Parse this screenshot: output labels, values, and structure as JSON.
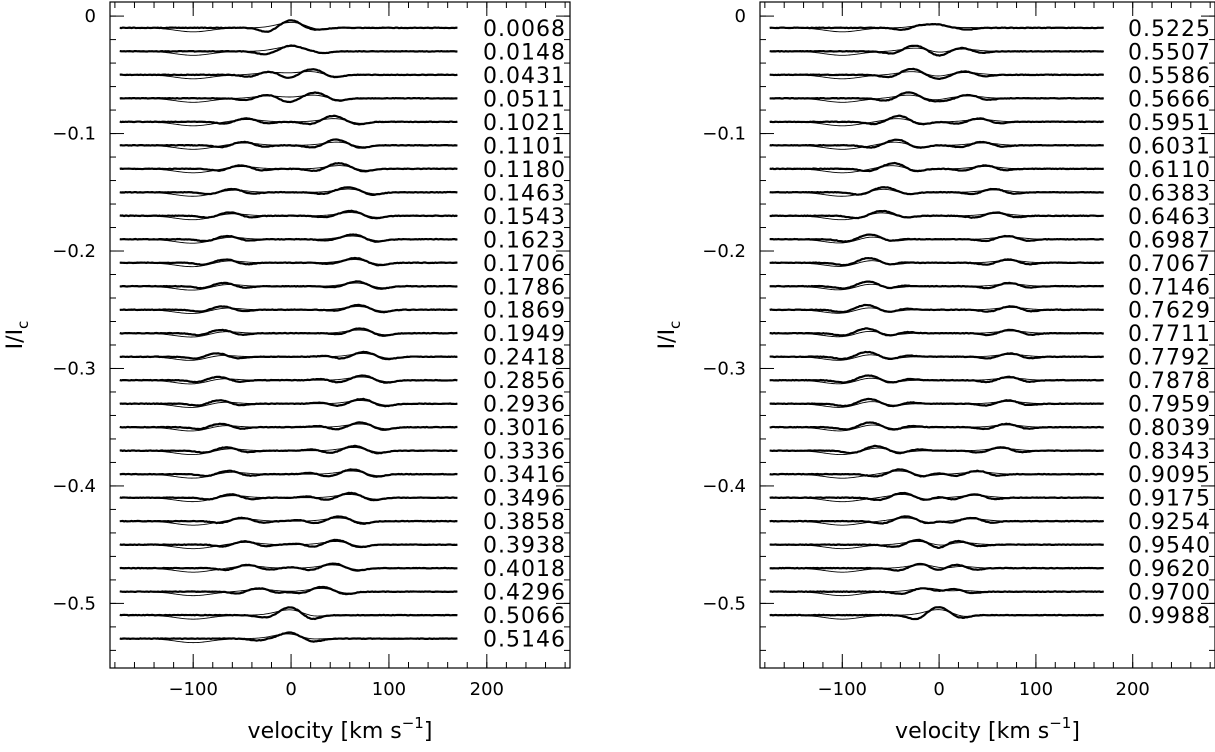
{
  "chart_data": [
    {
      "type": "line",
      "xlabel": "velocity [km s",
      "xlabel_sup": "−1",
      "xlabel_end": "]",
      "ylabel": "I/I",
      "ylabel_sub": "c",
      "xlim": [
        -185,
        285
      ],
      "ylim": [
        -0.555,
        0.012
      ],
      "xticks": [
        -100,
        0,
        100,
        200
      ],
      "xtick_labels": [
        "−100",
        "0",
        "100",
        "200"
      ],
      "yticks": [
        0,
        -0.1,
        -0.2,
        -0.3,
        -0.4,
        -0.5
      ],
      "ytick_labels": [
        "0",
        "−0.1",
        "−0.2",
        "−0.3",
        "−0.4",
        "−0.5"
      ],
      "profile_velocity_range": [
        -175,
        170
      ],
      "profile_offset_first": -0.01,
      "profile_offset_step": -0.02,
      "series": [
        {
          "name": "0.0068"
        },
        {
          "name": "0.0148"
        },
        {
          "name": "0.0431"
        },
        {
          "name": "0.0511"
        },
        {
          "name": "0.1021"
        },
        {
          "name": "0.1101"
        },
        {
          "name": "0.1180"
        },
        {
          "name": "0.1463"
        },
        {
          "name": "0.1543"
        },
        {
          "name": "0.1623"
        },
        {
          "name": "0.1706"
        },
        {
          "name": "0.1786"
        },
        {
          "name": "0.1869"
        },
        {
          "name": "0.1949"
        },
        {
          "name": "0.2418"
        },
        {
          "name": "0.2856"
        },
        {
          "name": "0.2936"
        },
        {
          "name": "0.3016"
        },
        {
          "name": "0.3336"
        },
        {
          "name": "0.3416"
        },
        {
          "name": "0.3496"
        },
        {
          "name": "0.3858"
        },
        {
          "name": "0.3938"
        },
        {
          "name": "0.4018"
        },
        {
          "name": "0.4296"
        },
        {
          "name": "0.5066"
        },
        {
          "name": "0.5146"
        }
      ]
    },
    {
      "type": "line",
      "xlabel": "velocity [km s",
      "xlabel_sup": "−1",
      "xlabel_end": "]",
      "ylabel": "I/I",
      "ylabel_sub": "c",
      "xlim": [
        -185,
        285
      ],
      "ylim": [
        -0.555,
        0.012
      ],
      "xticks": [
        -100,
        0,
        100,
        200
      ],
      "xtick_labels": [
        "−100",
        "0",
        "100",
        "200"
      ],
      "yticks": [
        0,
        -0.1,
        -0.2,
        -0.3,
        -0.4,
        -0.5
      ],
      "ytick_labels": [
        "0",
        "−0.1",
        "−0.2",
        "−0.3",
        "−0.4",
        "−0.5"
      ],
      "profile_velocity_range": [
        -175,
        170
      ],
      "profile_offset_first": -0.01,
      "profile_offset_step": -0.02,
      "series": [
        {
          "name": "0.5225"
        },
        {
          "name": "0.5507"
        },
        {
          "name": "0.5586"
        },
        {
          "name": "0.5666"
        },
        {
          "name": "0.5951"
        },
        {
          "name": "0.6031"
        },
        {
          "name": "0.6110"
        },
        {
          "name": "0.6383"
        },
        {
          "name": "0.6463"
        },
        {
          "name": "0.6987"
        },
        {
          "name": "0.7067"
        },
        {
          "name": "0.7146"
        },
        {
          "name": "0.7629"
        },
        {
          "name": "0.7711"
        },
        {
          "name": "0.7792"
        },
        {
          "name": "0.7878"
        },
        {
          "name": "0.7959"
        },
        {
          "name": "0.8039"
        },
        {
          "name": "0.8343"
        },
        {
          "name": "0.9095"
        },
        {
          "name": "0.9175"
        },
        {
          "name": "0.9254"
        },
        {
          "name": "0.9540"
        },
        {
          "name": "0.9620"
        },
        {
          "name": "0.9700"
        },
        {
          "name": "0.9988"
        }
      ]
    }
  ]
}
